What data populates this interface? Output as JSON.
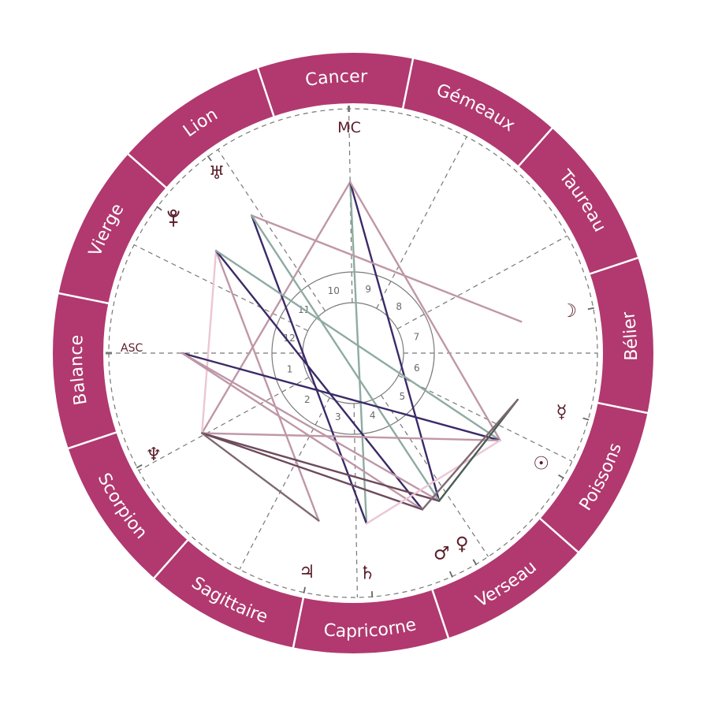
{
  "wheel": {
    "ascendant_longitude": 191.5,
    "colors": {
      "ring": "#b1396f",
      "ring_divider": "#ffffff",
      "sign_label": "#ffffff",
      "dashed_lines": "#777777",
      "house_circles": "#7a7a7a",
      "glyph": "#5a1d29"
    },
    "signs": [
      {
        "name": "Bélier"
      },
      {
        "name": "Taureau"
      },
      {
        "name": "Gémeaux"
      },
      {
        "name": "Cancer"
      },
      {
        "name": "Lion"
      },
      {
        "name": "Vierge"
      },
      {
        "name": "Balance"
      },
      {
        "name": "Scorpion"
      },
      {
        "name": "Sagittaire"
      },
      {
        "name": "Capricorne"
      },
      {
        "name": "Verseau"
      },
      {
        "name": "Poissons"
      }
    ],
    "angles": {
      "asc": {
        "label": "ASC",
        "longitude": 191.5
      },
      "mc": {
        "label": "MC",
        "longitude": 102.5
      }
    },
    "houses": [
      {
        "number": "1",
        "cusp": 191.5
      },
      {
        "number": "2",
        "cusp": 220.2
      },
      {
        "number": "3",
        "cusp": 253.8
      },
      {
        "number": "4",
        "cusp": 282.5
      },
      {
        "number": "5",
        "cusp": 315.1
      },
      {
        "number": "6",
        "cusp": 345.2
      },
      {
        "number": "7",
        "cusp": 11.5
      },
      {
        "number": "8",
        "cusp": 40.2
      },
      {
        "number": "9",
        "cusp": 73.8
      },
      {
        "number": "10",
        "cusp": 102.5
      },
      {
        "number": "11",
        "cusp": 135.1
      },
      {
        "number": "12",
        "cusp": 165.2
      }
    ],
    "planets": [
      {
        "key": "moon",
        "glyph": "☽",
        "icon": "moon-icon",
        "longitude": 22.1,
        "glyph_longitude": 22.5,
        "glyph_radius": 279
      },
      {
        "key": "mercury",
        "glyph": "☿",
        "icon": "mercury-icon",
        "longitude": 355.7,
        "glyph_longitude": 355.7,
        "glyph_radius": 275
      },
      {
        "key": "sun",
        "glyph": "☉",
        "icon": "sun-icon",
        "longitude": 340.8,
        "glyph_longitude": 341.0,
        "glyph_radius": 277
      },
      {
        "key": "venus",
        "glyph": "♀",
        "icon": "venus-icon",
        "longitude": 311.7,
        "glyph_longitude": 311.2,
        "glyph_radius": 279
      },
      {
        "key": "mars",
        "glyph": "♂",
        "icon": "mars-icon",
        "longitude": 305.4,
        "glyph_longitude": 305.3,
        "glyph_radius": 278
      },
      {
        "key": "saturn",
        "glyph": "♄",
        "icon": "saturn-icon",
        "longitude": 286.0,
        "glyph_longitude": 285.2,
        "glyph_radius": 280
      },
      {
        "key": "jupiter",
        "glyph": "♃",
        "icon": "jupiter-icon",
        "longitude": 269.9,
        "glyph_longitude": 269.6,
        "glyph_radius": 284
      },
      {
        "key": "neptune",
        "glyph": "♆",
        "icon": "neptune-icon",
        "longitude": 219.4,
        "glyph_longitude": 218.5,
        "glyph_radius": 284
      },
      {
        "key": "pluto",
        "glyph": "♇",
        "icon": "pluto-icon",
        "longitude": 154.75,
        "glyph_longitude": 154.6,
        "glyph_radius": 285
      },
      {
        "key": "uranus",
        "glyph": "♅",
        "icon": "uranus-icon",
        "longitude": 137.9,
        "glyph_longitude": 138.7,
        "glyph_radius": 286
      }
    ],
    "aspect_colors": {
      "dark_purple": "#3b2a67",
      "teal": "#8eaba2",
      "mauve": "#bf97a7",
      "light_pink": "#ecc6d5",
      "dark_mauve": "#6d4a5b",
      "gray_mauve": "#7f6873",
      "dark_green": "#4b5e56"
    },
    "aspects": [
      {
        "from": "mc",
        "to": "neptune",
        "color": "mauve"
      },
      {
        "from": "mc",
        "to": "saturn",
        "color": "teal"
      },
      {
        "from": "mc",
        "to": "venus",
        "color": "dark_purple"
      },
      {
        "from": "mc",
        "to": "sun",
        "color": "mauve"
      },
      {
        "from": "uranus",
        "to": "moon",
        "color": "mauve"
      },
      {
        "from": "uranus",
        "to": "saturn",
        "color": "dark_purple"
      },
      {
        "from": "uranus",
        "to": "venus",
        "color": "teal"
      },
      {
        "from": "pluto",
        "to": "neptune",
        "color": "light_pink"
      },
      {
        "from": "pluto",
        "to": "jupiter",
        "color": "mauve"
      },
      {
        "from": "pluto",
        "to": "mars",
        "color": "dark_purple"
      },
      {
        "from": "pluto",
        "to": "sun",
        "color": "teal"
      },
      {
        "from": "asc",
        "to": "sun",
        "color": "dark_purple"
      },
      {
        "from": "asc",
        "to": "mars",
        "color": "mauve"
      },
      {
        "from": "asc",
        "to": "venus",
        "color": "mauve"
      },
      {
        "from": "neptune",
        "to": "sun",
        "color": "mauve"
      },
      {
        "from": "neptune",
        "to": "mars",
        "color": "dark_mauve"
      },
      {
        "from": "neptune",
        "to": "venus",
        "color": "dark_mauve"
      },
      {
        "from": "neptune",
        "to": "jupiter",
        "color": "gray_mauve"
      },
      {
        "from": "saturn",
        "to": "sun",
        "color": "light_pink"
      },
      {
        "from": "venus",
        "to": "mercury",
        "color": "dark_green"
      },
      {
        "from": "mars",
        "to": "mercury",
        "color": "gray_mauve"
      }
    ]
  }
}
